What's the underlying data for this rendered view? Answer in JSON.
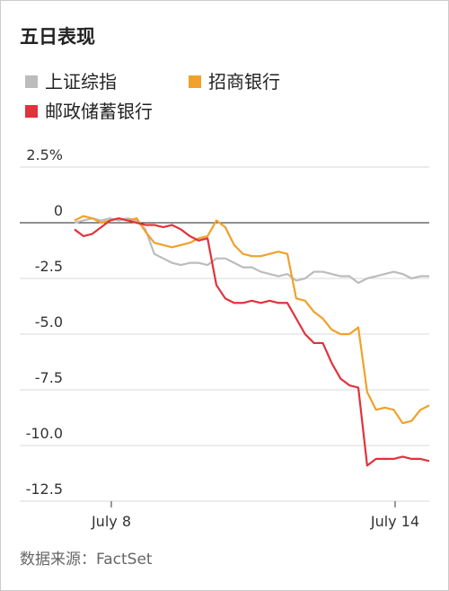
{
  "chart_data": {
    "type": "line",
    "title": "五日表现",
    "source": "数据来源：FactSet",
    "x": [
      0,
      2,
      4,
      6,
      8,
      10,
      12,
      14,
      16,
      18,
      20,
      22,
      24,
      26,
      28,
      30,
      32,
      34,
      36,
      38,
      40,
      42,
      44,
      46,
      48,
      50,
      52,
      54,
      56,
      58,
      60,
      62,
      64,
      66,
      68,
      70,
      72,
      74,
      76,
      78,
      80
    ],
    "xlim": [
      0,
      80
    ],
    "xticks": [
      {
        "value": 8.3,
        "label": "July 8"
      },
      {
        "value": 72.3,
        "label": "July 14"
      }
    ],
    "ylim": [
      -12.5,
      2.5
    ],
    "yticks": [
      {
        "value": 2.5,
        "label": "2.5%"
      },
      0,
      -2.5,
      {
        "value": -5,
        "label": "-5.0"
      },
      -7.5,
      {
        "value": -10,
        "label": "-10.0"
      },
      -12.5
    ],
    "grid": true,
    "series": [
      {
        "name": "上证综指",
        "color": "#bcbcbc",
        "values": [
          0,
          0.1,
          0.2,
          0.1,
          0.2,
          0.1,
          0.2,
          0.1,
          -0.3,
          -1.4,
          -1.6,
          -1.8,
          -1.9,
          -1.8,
          -1.8,
          -1.9,
          -1.6,
          -1.6,
          -1.8,
          -2.0,
          -2.0,
          -2.2,
          -2.3,
          -2.4,
          -2.3,
          -2.6,
          -2.5,
          -2.2,
          -2.2,
          -2.3,
          -2.4,
          -2.4,
          -2.7,
          -2.5,
          -2.4,
          -2.3,
          -2.2,
          -2.3,
          -2.5,
          -2.4,
          -2.4
        ]
      },
      {
        "name": "招商银行",
        "color": "#f0a12a",
        "values": [
          0.1,
          0.3,
          0.2,
          0,
          0.1,
          0.2,
          0.1,
          0.2,
          -0.4,
          -0.9,
          -1.0,
          -1.1,
          -1.0,
          -0.9,
          -0.7,
          -0.6,
          0.1,
          -0.2,
          -1.0,
          -1.4,
          -1.5,
          -1.5,
          -1.4,
          -1.3,
          -1.4,
          -3.4,
          -3.5,
          -4.0,
          -4.3,
          -4.8,
          -5.0,
          -5.0,
          -4.7,
          -7.6,
          -8.4,
          -8.3,
          -8.4,
          -9.0,
          -8.9,
          -8.4,
          -8.2
        ]
      },
      {
        "name": "邮政储蓄银行",
        "color": "#e2323c",
        "values": [
          -0.3,
          -0.6,
          -0.5,
          -0.2,
          0.1,
          0.2,
          0.1,
          0,
          -0.1,
          -0.1,
          -0.2,
          -0.1,
          -0.3,
          -0.6,
          -0.8,
          -0.7,
          -2.8,
          -3.4,
          -3.6,
          -3.6,
          -3.5,
          -3.6,
          -3.5,
          -3.6,
          -3.6,
          -4.3,
          -5.0,
          -5.4,
          -5.4,
          -6.3,
          -7.0,
          -7.3,
          -7.4,
          -10.9,
          -10.6,
          -10.6,
          -10.6,
          -10.5,
          -10.6,
          -10.6,
          -10.7
        ]
      }
    ]
  }
}
